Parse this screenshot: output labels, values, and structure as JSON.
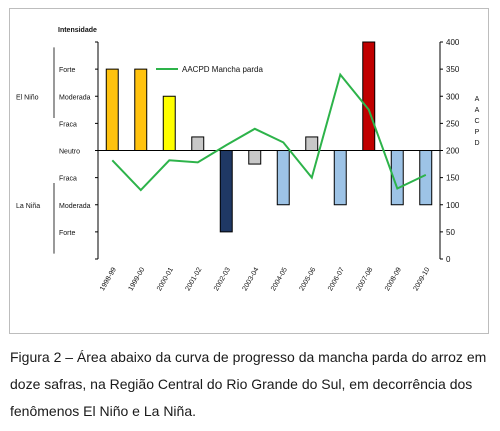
{
  "chart_data": {
    "type": "bar",
    "categories": [
      "1998-99",
      "1999-00",
      "2000-01",
      "2001-02",
      "2002-03",
      "2003-04",
      "2004-05",
      "2005-06",
      "2006-07",
      "2007-08",
      "2008-09",
      "2009-10"
    ],
    "enso_intensity_levels": [
      3,
      3,
      2,
      0.5,
      -3,
      -0.5,
      -2,
      0.5,
      -2,
      4,
      -2,
      -2
    ],
    "bar_colors": [
      "#FFC20E",
      "#FFC20E",
      "#FFFF00",
      "#C8C8C8",
      "#1F3864",
      "#C8C8C8",
      "#9DC3E6",
      "#C8C8C8",
      "#9DC3E6",
      "#C00000",
      "#9DC3E6",
      "#9DC3E6"
    ],
    "left_axis": {
      "title": "Intensidade",
      "groups": [
        {
          "name": "El Niño",
          "levels": [
            "Forte",
            "Moderada",
            "Fraca"
          ]
        },
        {
          "name": "",
          "levels": [
            "Neutro"
          ]
        },
        {
          "name": "La Niña",
          "levels": [
            "Fraca",
            "Moderada",
            "Forte"
          ]
        }
      ]
    },
    "series": [
      {
        "name": "AACPD Mancha parda",
        "type": "line",
        "color": "#2DB34A",
        "values": [
          182,
          127,
          182,
          178,
          210,
          240,
          215,
          150,
          340,
          275,
          130,
          155
        ]
      }
    ],
    "right_axis": {
      "label": "AACPD",
      "ylim": [
        0,
        400
      ],
      "ticks": [
        "0",
        "50",
        "100",
        "150",
        "200",
        "250",
        "300",
        "350",
        "400"
      ]
    },
    "legend": "top-center"
  },
  "caption": "Figura 2 – Área abaixo da curva de progresso da mancha parda do arroz em doze safras, na Região Central do Rio Grande do Sul, em decorrência dos fenômenos El Niño e La Niña."
}
